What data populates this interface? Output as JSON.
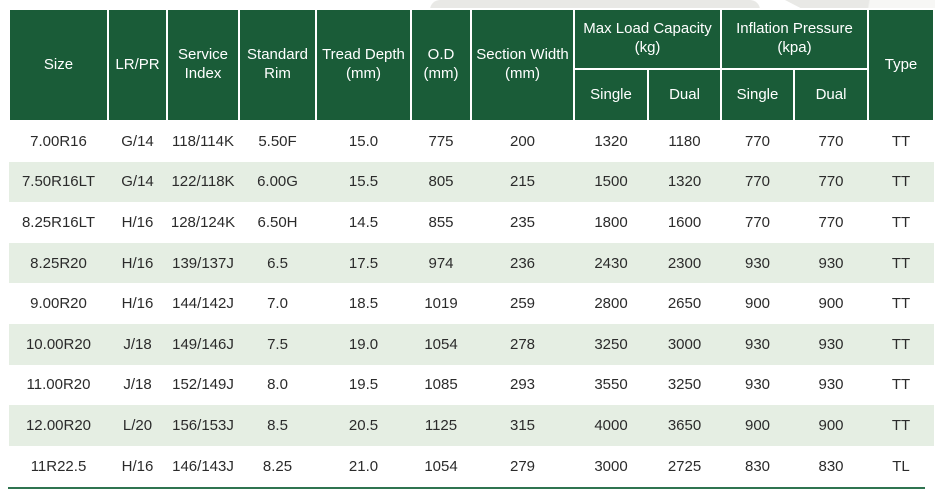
{
  "colors": {
    "header_bg": "#1a5c38",
    "row_alt_bg": "#e5eee3",
    "header_text": "#ffffff",
    "body_text": "#2b2b2b",
    "bottom_rule": "#2f7450"
  },
  "table": {
    "headers": {
      "size": "Size",
      "lr_pr": "LR/PR",
      "service_index": "Service Index",
      "standard_rim": "Standard Rim",
      "tread_depth": "Tread Depth (mm)",
      "od": "O.D (mm)",
      "section_width": "Section Width (mm)",
      "max_load_capacity": "Max Load Capacity (kg)",
      "inflation_pressure": "Inflation Pressure (kpa)",
      "single_load": "Single",
      "dual_load": "Dual",
      "single_pressure": "Single",
      "dual_pressure": "Dual",
      "type": "Type"
    },
    "rows": [
      [
        "7.00R16",
        "G/14",
        "118/114K",
        "5.50F",
        "15.0",
        "775",
        "200",
        "1320",
        "1180",
        "770",
        "770",
        "TT"
      ],
      [
        "7.50R16LT",
        "G/14",
        "122/118K",
        "6.00G",
        "15.5",
        "805",
        "215",
        "1500",
        "1320",
        "770",
        "770",
        "TT"
      ],
      [
        "8.25R16LT",
        "H/16",
        "128/124K",
        "6.50H",
        "14.5",
        "855",
        "235",
        "1800",
        "1600",
        "770",
        "770",
        "TT"
      ],
      [
        "8.25R20",
        "H/16",
        "139/137J",
        "6.5",
        "17.5",
        "974",
        "236",
        "2430",
        "2300",
        "930",
        "930",
        "TT"
      ],
      [
        "9.00R20",
        "H/16",
        "144/142J",
        "7.0",
        "18.5",
        "1019",
        "259",
        "2800",
        "2650",
        "900",
        "900",
        "TT"
      ],
      [
        "10.00R20",
        "J/18",
        "149/146J",
        "7.5",
        "19.0",
        "1054",
        "278",
        "3250",
        "3000",
        "930",
        "930",
        "TT"
      ],
      [
        "11.00R20",
        "J/18",
        "152/149J",
        "8.0",
        "19.5",
        "1085",
        "293",
        "3550",
        "3250",
        "930",
        "930",
        "TT"
      ],
      [
        "12.00R20",
        "L/20",
        "156/153J",
        "8.5",
        "20.5",
        "1125",
        "315",
        "4000",
        "3650",
        "900",
        "900",
        "TT"
      ],
      [
        "11R22.5",
        "H/16",
        "146/143J",
        "8.25",
        "21.0",
        "1054",
        "279",
        "3000",
        "2725",
        "830",
        "830",
        "TL"
      ]
    ]
  }
}
